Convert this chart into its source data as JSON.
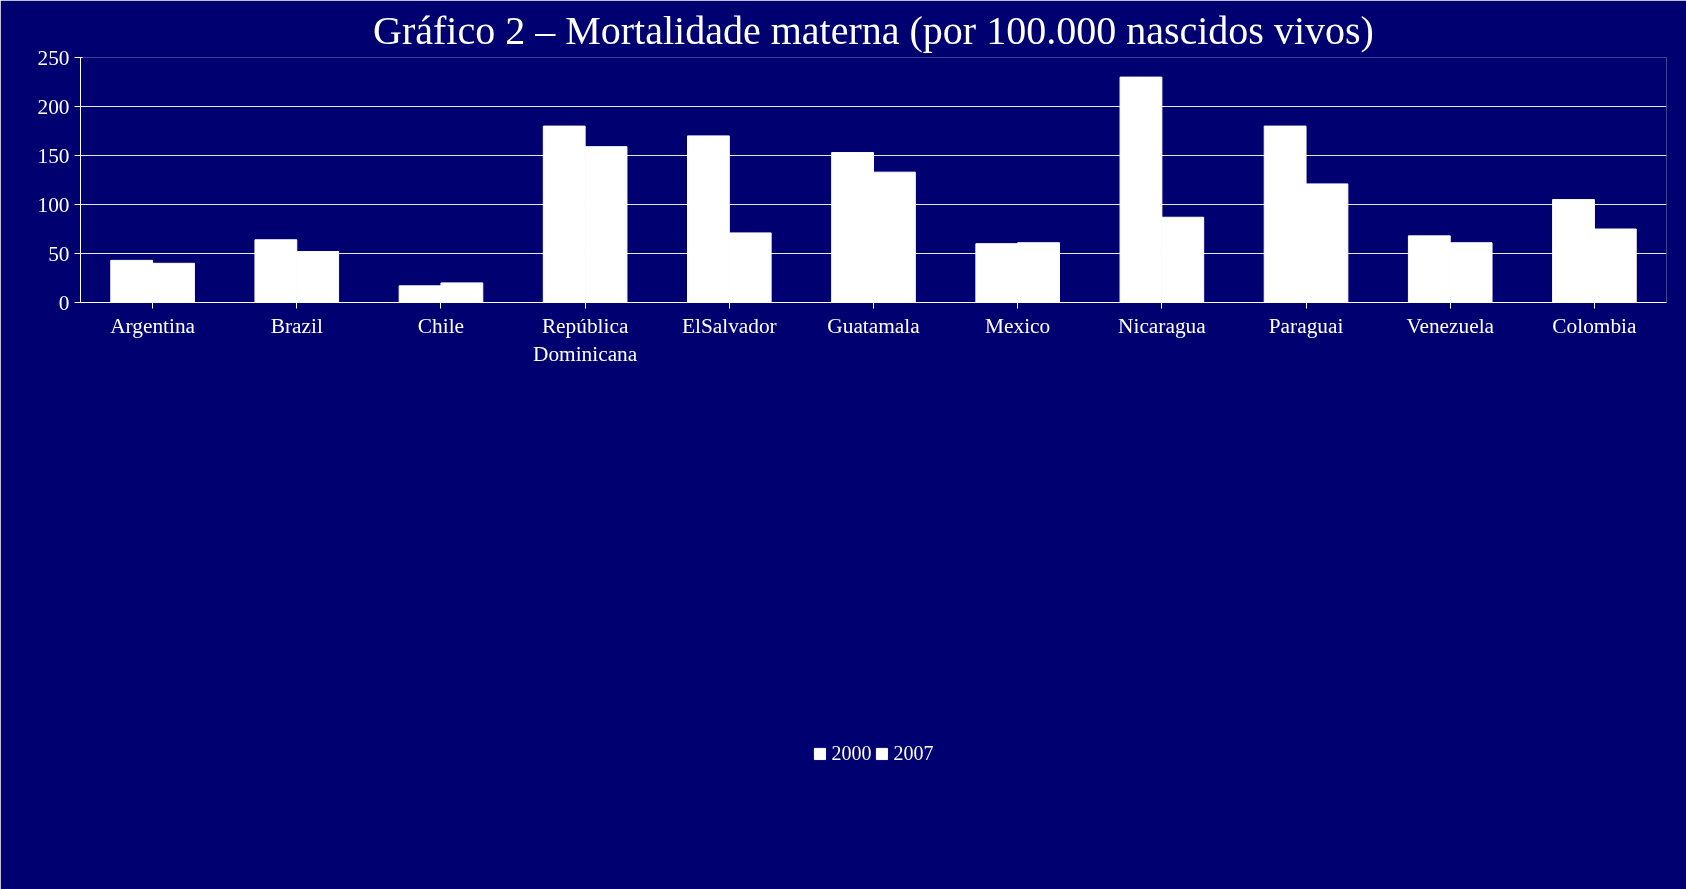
{
  "chart_data": {
    "type": "bar",
    "title": "Gráfico 2 – Mortalidade materna (por 100.000 nascidos vivos)",
    "categories": [
      "Argentina",
      "Brazil",
      "Chile",
      "República\nDominicana",
      "ElSalvador",
      "Guatamala",
      "Mexico",
      "Nicaragua",
      "Paraguai",
      "Venezuela",
      "Colombia"
    ],
    "series": [
      {
        "name": "2000",
        "color": "#ffffff",
        "values": [
          43,
          64,
          17,
          180,
          170,
          153,
          60,
          230,
          180,
          68,
          105
        ]
      },
      {
        "name": "2007",
        "color": "#ffffff",
        "values": [
          40,
          52,
          20,
          159,
          71,
          133,
          61,
          87,
          121,
          61,
          75
        ]
      }
    ],
    "ylim": [
      0,
      250
    ],
    "yticks": [
      0,
      50,
      100,
      150,
      200,
      250
    ],
    "grid": "y",
    "legend": "bottom"
  }
}
